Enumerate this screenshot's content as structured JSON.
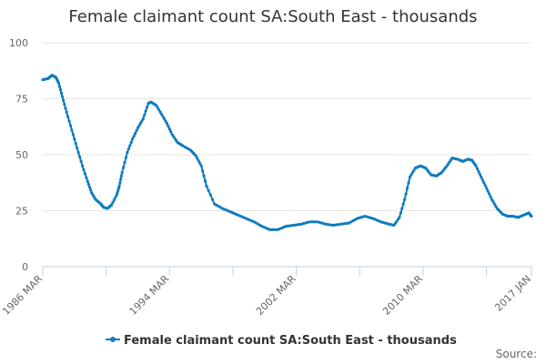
{
  "chart_data": {
    "type": "line",
    "title": "Female claimant count SA:South East - thousands",
    "xlabel": "",
    "ylabel": "",
    "x_start": "1986 MAR",
    "x_end": "2017 JAN",
    "xlim": [
      1986.167,
      2017.0
    ],
    "ylim": [
      0,
      100
    ],
    "y_ticks": [
      0,
      25,
      50,
      75,
      100
    ],
    "x_tick_labels": [
      {
        "label": "1986 MAR",
        "x": 1986.167
      },
      {
        "label": "1994 MAR",
        "x": 1994.167
      },
      {
        "label": "2002 MAR",
        "x": 2002.167
      },
      {
        "label": "2010 MAR",
        "x": 2010.167
      },
      {
        "label": "2017 JAN",
        "x": 2017.0
      }
    ],
    "x_grid_years": [
      1986.167,
      1990.167,
      1994.167,
      1998.167,
      2002.167,
      2006.167,
      2010.167,
      2014.167
    ],
    "grid": "horizontal",
    "legend_position": "bottom",
    "series": [
      {
        "name": "Female claimant count SA:South East - thousands",
        "color": "#0f7cbf",
        "points": [
          [
            1986.167,
            83.5
          ],
          [
            1986.5,
            84.0
          ],
          [
            1986.75,
            85.5
          ],
          [
            1987.0,
            84.5
          ],
          [
            1987.17,
            82.0
          ],
          [
            1987.4,
            76.0
          ],
          [
            1987.67,
            69.0
          ],
          [
            1988.0,
            61.0
          ],
          [
            1988.33,
            53.0
          ],
          [
            1988.67,
            45.0
          ],
          [
            1989.0,
            38.0
          ],
          [
            1989.25,
            33.0
          ],
          [
            1989.5,
            30.0
          ],
          [
            1989.83,
            28.0
          ],
          [
            1990.0,
            26.5
          ],
          [
            1990.25,
            26.0
          ],
          [
            1990.5,
            27.5
          ],
          [
            1990.83,
            32.0
          ],
          [
            1991.0,
            36.0
          ],
          [
            1991.17,
            42.0
          ],
          [
            1991.5,
            51.0
          ],
          [
            1991.83,
            57.0
          ],
          [
            1992.17,
            62.0
          ],
          [
            1992.5,
            66.0
          ],
          [
            1992.83,
            73.0
          ],
          [
            1993.0,
            73.5
          ],
          [
            1993.33,
            72.0
          ],
          [
            1993.67,
            68.0
          ],
          [
            1994.0,
            64.0
          ],
          [
            1994.33,
            59.0
          ],
          [
            1994.67,
            55.5
          ],
          [
            1995.0,
            54.0
          ],
          [
            1995.5,
            52.0
          ],
          [
            1995.83,
            49.5
          ],
          [
            1996.17,
            45.0
          ],
          [
            1996.5,
            36.0
          ],
          [
            1997.0,
            28.0
          ],
          [
            1997.5,
            26.0
          ],
          [
            1998.0,
            24.5
          ],
          [
            1998.5,
            23.0
          ],
          [
            1999.0,
            21.5
          ],
          [
            1999.5,
            20.0
          ],
          [
            2000.0,
            18.0
          ],
          [
            2000.5,
            16.5
          ],
          [
            2001.0,
            16.5
          ],
          [
            2001.5,
            18.0
          ],
          [
            2002.0,
            18.5
          ],
          [
            2002.5,
            19.0
          ],
          [
            2003.0,
            20.0
          ],
          [
            2003.5,
            20.0
          ],
          [
            2004.0,
            19.0
          ],
          [
            2004.5,
            18.5
          ],
          [
            2005.0,
            19.0
          ],
          [
            2005.5,
            19.5
          ],
          [
            2006.0,
            21.5
          ],
          [
            2006.5,
            22.5
          ],
          [
            2007.0,
            21.5
          ],
          [
            2007.5,
            20.0
          ],
          [
            2008.0,
            19.0
          ],
          [
            2008.33,
            18.5
          ],
          [
            2008.67,
            22.0
          ],
          [
            2009.0,
            30.0
          ],
          [
            2009.33,
            40.0
          ],
          [
            2009.67,
            44.0
          ],
          [
            2010.0,
            45.0
          ],
          [
            2010.33,
            44.0
          ],
          [
            2010.67,
            41.0
          ],
          [
            2011.0,
            40.5
          ],
          [
            2011.33,
            42.0
          ],
          [
            2011.67,
            45.0
          ],
          [
            2012.0,
            48.5
          ],
          [
            2012.33,
            48.0
          ],
          [
            2012.67,
            47.0
          ],
          [
            2013.0,
            48.0
          ],
          [
            2013.25,
            47.5
          ],
          [
            2013.5,
            45.0
          ],
          [
            2013.83,
            40.0
          ],
          [
            2014.17,
            35.0
          ],
          [
            2014.5,
            30.0
          ],
          [
            2014.83,
            26.0
          ],
          [
            2015.17,
            23.5
          ],
          [
            2015.5,
            22.5
          ],
          [
            2015.83,
            22.5
          ],
          [
            2016.17,
            22.0
          ],
          [
            2016.5,
            23.0
          ],
          [
            2016.83,
            24.0
          ],
          [
            2017.0,
            22.5
          ]
        ]
      }
    ]
  },
  "credit": "Source:"
}
